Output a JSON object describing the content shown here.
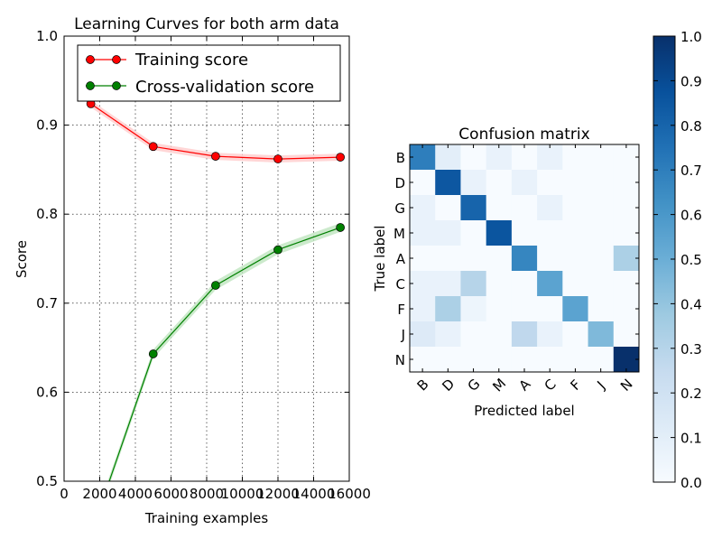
{
  "chart_data": [
    {
      "type": "line",
      "title": "Learning Curves for both arm data",
      "xlabel": "Training examples",
      "ylabel": "Score",
      "xlim": [
        0,
        16000
      ],
      "ylim": [
        0.5,
        1.0
      ],
      "xticks": [
        0,
        2000,
        4000,
        6000,
        8000,
        10000,
        12000,
        14000,
        16000
      ],
      "xtick_labels": [
        "0",
        "2000",
        "4000",
        "6000",
        "8000",
        "10000",
        "12000",
        "14000",
        "16000"
      ],
      "yticks": [
        0.5,
        0.6,
        0.7,
        0.8,
        0.9,
        1.0
      ],
      "ytick_labels": [
        "0.5",
        "0.6",
        "0.7",
        "0.8",
        "0.9",
        "1.0"
      ],
      "grid": true,
      "legend_position": "top",
      "x": [
        1500,
        5000,
        8500,
        12000,
        15500
      ],
      "series": [
        {
          "name": "Training score",
          "color": "#ff0000",
          "fill_color": "#ffcccc",
          "band": 0.004,
          "values": [
            0.924,
            0.876,
            0.865,
            0.862,
            0.864
          ]
        },
        {
          "name": "Cross-validation score",
          "color": "#008000",
          "fill_color": "#bfe5bf",
          "band": 0.005,
          "values": [
            0.44,
            0.643,
            0.72,
            0.76,
            0.785
          ]
        }
      ]
    },
    {
      "type": "heatmap",
      "title": "Confusion matrix",
      "xlabel": "Predicted label",
      "ylabel": "True label",
      "labels": [
        "B",
        "D",
        "G",
        "M",
        "A",
        "C",
        "F",
        "J",
        "N"
      ],
      "colormap": "Blues",
      "vmin": 0.0,
      "vmax": 1.0,
      "colorbar_ticks": [
        0.0,
        0.1,
        0.2,
        0.3,
        0.4,
        0.5,
        0.6,
        0.7,
        0.8,
        0.9,
        1.0
      ],
      "colorbar_tick_labels": [
        "0.0",
        "0.1",
        "0.2",
        "0.3",
        "0.4",
        "0.5",
        "0.6",
        "0.7",
        "0.8",
        "0.9",
        "1.0"
      ],
      "matrix": [
        [
          0.7,
          0.1,
          0.0,
          0.07,
          0.0,
          0.07,
          0.0,
          0.0,
          0.0
        ],
        [
          0.0,
          0.85,
          0.07,
          0.0,
          0.07,
          0.0,
          0.0,
          0.0,
          0.0
        ],
        [
          0.07,
          0.0,
          0.8,
          0.0,
          0.0,
          0.07,
          0.0,
          0.0,
          0.0
        ],
        [
          0.07,
          0.07,
          0.0,
          0.86,
          0.0,
          0.0,
          0.0,
          0.0,
          0.0
        ],
        [
          0.0,
          0.0,
          0.0,
          0.0,
          0.67,
          0.0,
          0.0,
          0.0,
          0.33
        ],
        [
          0.07,
          0.07,
          0.3,
          0.0,
          0.0,
          0.55,
          0.0,
          0.0,
          0.0
        ],
        [
          0.07,
          0.33,
          0.05,
          0.0,
          0.0,
          0.0,
          0.55,
          0.0,
          0.0
        ],
        [
          0.13,
          0.07,
          0.0,
          0.0,
          0.27,
          0.07,
          0.0,
          0.45,
          0.0
        ],
        [
          0.0,
          0.0,
          0.0,
          0.0,
          0.0,
          0.0,
          0.0,
          0.0,
          1.0
        ]
      ]
    }
  ]
}
